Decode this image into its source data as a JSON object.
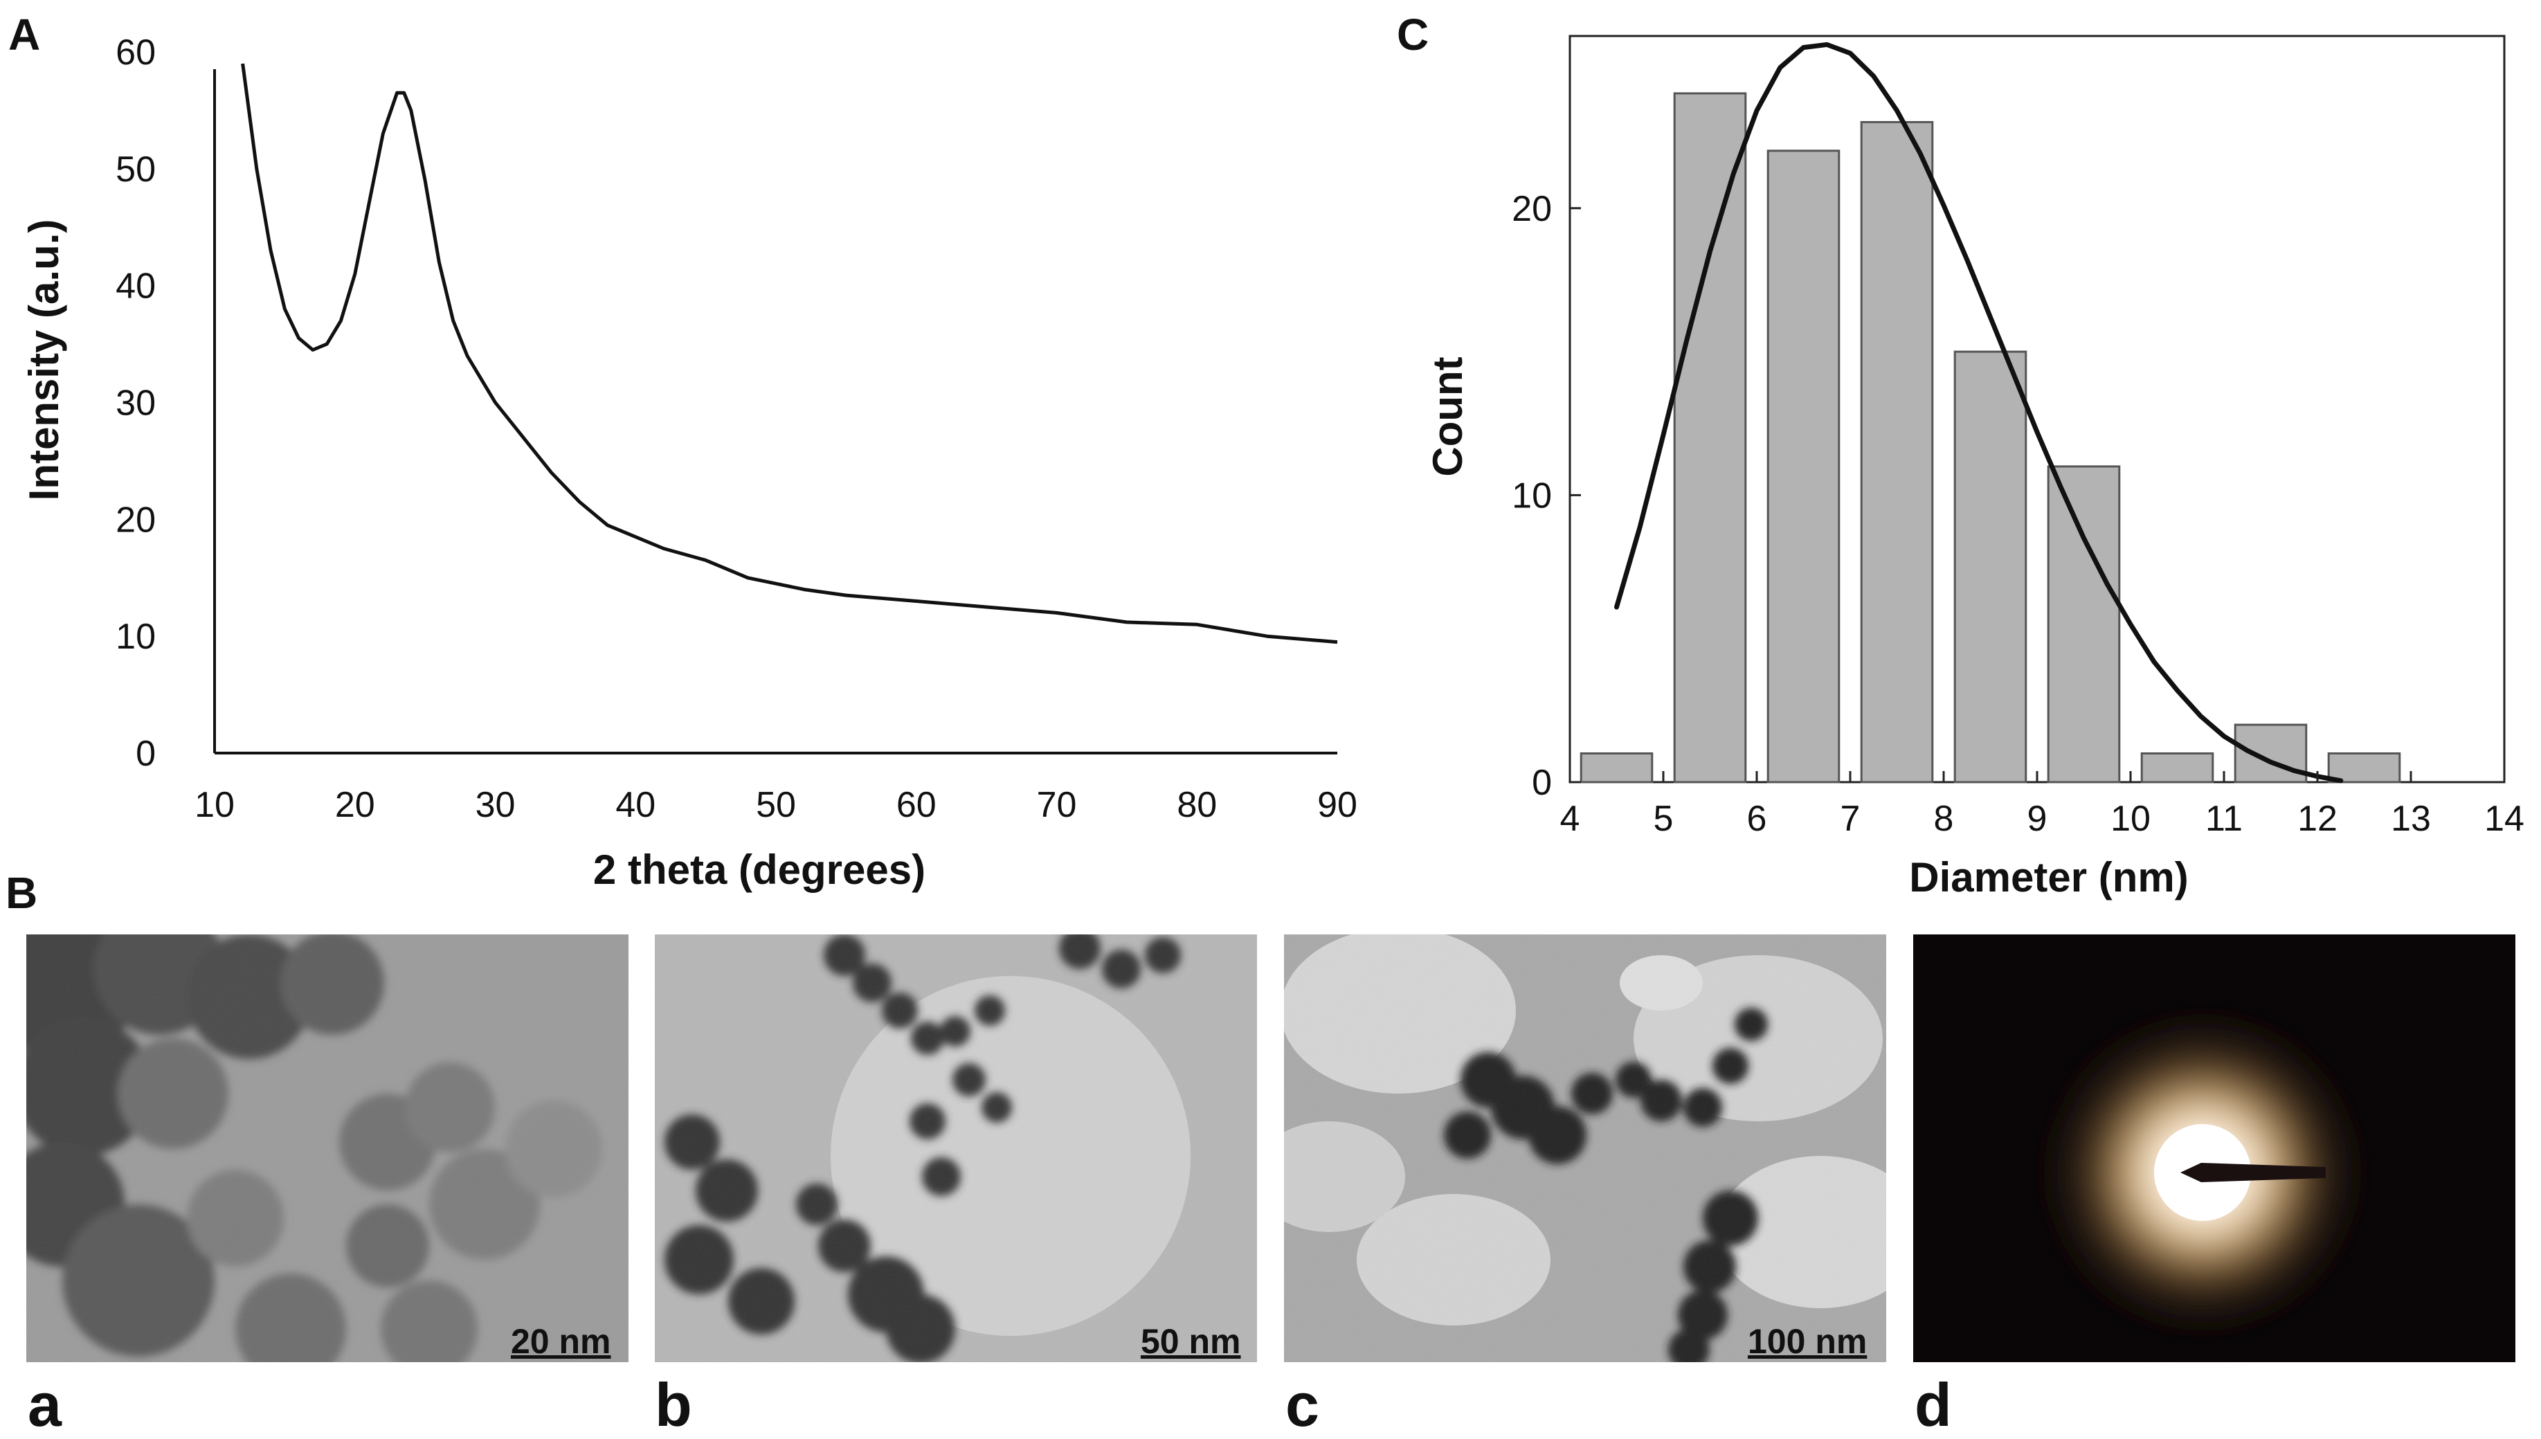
{
  "figure": {
    "panel_labels": {
      "A": "A",
      "B": "B",
      "C": "C"
    },
    "images": [
      {
        "label": "a",
        "scale_bar": "20 nm",
        "kind": "tem-micrograph-fine"
      },
      {
        "label": "b",
        "scale_bar": "50 nm",
        "kind": "tem-micrograph-medium"
      },
      {
        "label": "c",
        "scale_bar": "100 nm",
        "kind": "tem-micrograph-wide"
      },
      {
        "label": "d",
        "scale_bar": "",
        "kind": "electron-diffraction-pattern"
      }
    ],
    "colors": {
      "xrd_line": "#111111",
      "bar_fill": "#b3b3b3",
      "bar_stroke": "#555555",
      "fit_line": "#111111",
      "diffraction_bg": "#0a0608"
    }
  },
  "chart_data": [
    {
      "type": "line",
      "panel": "A",
      "title": "",
      "xlabel": "2 theta (degrees)",
      "ylabel": "Intensity (a.u.)",
      "xlim": [
        10,
        90
      ],
      "ylim": [
        0,
        60
      ],
      "xticks": [
        10,
        20,
        30,
        40,
        50,
        60,
        70,
        80,
        90
      ],
      "yticks": [
        0,
        10,
        20,
        30,
        40,
        50,
        60
      ],
      "grid": false,
      "series": [
        {
          "x": [
            12,
            13,
            14,
            15,
            16,
            17,
            18,
            19,
            20,
            21,
            22,
            23,
            23.5,
            24,
            25,
            26,
            27,
            28,
            29,
            30,
            32,
            34,
            36,
            38,
            40,
            42,
            45,
            48,
            50,
            52,
            55,
            58,
            60,
            65,
            70,
            75,
            80,
            85,
            90
          ],
          "y": [
            59,
            50,
            43,
            38,
            35.5,
            34.5,
            35,
            37,
            41,
            47,
            53,
            56.5,
            56.5,
            55,
            49,
            42,
            37,
            34,
            32,
            30,
            27,
            24,
            21.5,
            19.5,
            18.5,
            17.5,
            16.5,
            15,
            14.5,
            14,
            13.5,
            13.2,
            13,
            12.5,
            12,
            11.2,
            11,
            10,
            9.5
          ]
        }
      ]
    },
    {
      "type": "bar",
      "panel": "C",
      "title": "",
      "xlabel": "Diameter (nm)",
      "ylabel": "Count",
      "xlim": [
        4,
        14
      ],
      "ylim": [
        0,
        26
      ],
      "xticks": [
        4,
        5,
        6,
        7,
        8,
        9,
        10,
        11,
        12,
        13,
        14
      ],
      "yticks": [
        0,
        10,
        20
      ],
      "grid": false,
      "bins": [
        4.5,
        5.5,
        6.5,
        7.5,
        8.5,
        9.5,
        10.5,
        11.5,
        12.5
      ],
      "values": [
        1,
        24,
        22,
        23,
        15,
        11,
        1,
        2,
        1
      ],
      "fit_curve": {
        "x": [
          4.5,
          4.75,
          5.0,
          5.25,
          5.5,
          5.75,
          6.0,
          6.25,
          6.5,
          6.75,
          7.0,
          7.25,
          7.5,
          7.75,
          8.0,
          8.25,
          8.5,
          8.75,
          9.0,
          9.25,
          9.5,
          9.75,
          10.0,
          10.25,
          10.5,
          10.75,
          11.0,
          11.25,
          11.5,
          11.75,
          12.0,
          12.25
        ],
        "y": [
          6.1,
          8.9,
          12.1,
          15.4,
          18.5,
          21.2,
          23.4,
          24.9,
          25.6,
          25.7,
          25.4,
          24.6,
          23.4,
          21.9,
          20.1,
          18.2,
          16.2,
          14.2,
          12.2,
          10.3,
          8.5,
          6.9,
          5.5,
          4.2,
          3.2,
          2.3,
          1.6,
          1.1,
          0.7,
          0.4,
          0.2,
          0.05
        ]
      }
    }
  ]
}
